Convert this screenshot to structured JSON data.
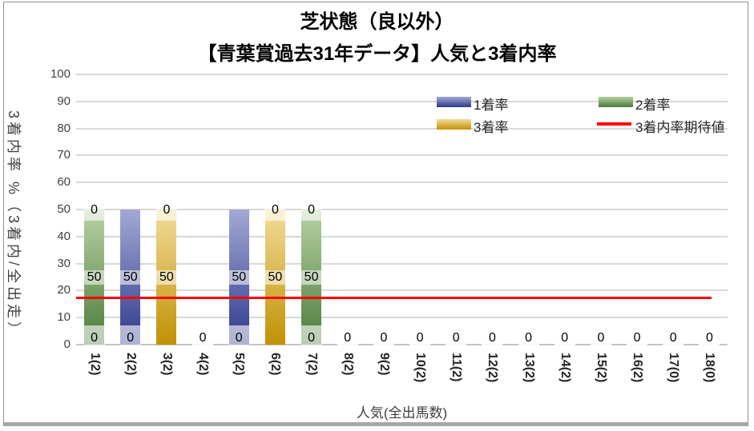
{
  "chart": {
    "title_line1": "芝状態（良以外）",
    "title_line2": "【青葉賞過去31年データ】人気と3着内率",
    "y_axis_title": "3着内率 %（3着内/全出走）",
    "x_axis_title": "人気(全出馬数)",
    "y_ticks": [
      "0",
      "10",
      "20",
      "30",
      "40",
      "50",
      "60",
      "70",
      "80",
      "90",
      "100"
    ],
    "legend": [
      {
        "label": "1着率",
        "type": "bar",
        "light": "#A3A9D4",
        "dark": "#2E3A8C"
      },
      {
        "label": "2着率",
        "type": "bar",
        "light": "#B7D2A5",
        "dark": "#4C7C39"
      },
      {
        "label": "3着率",
        "type": "bar",
        "light": "#F2DC9B",
        "dark": "#C19104"
      },
      {
        "label": "3着内率期待値",
        "type": "line",
        "color": "#FF0000"
      }
    ],
    "colors": {
      "grid": "#D9D9D9",
      "axis": "#C4C4C4",
      "title_text": "#000000",
      "tick_text": "#3F3F3F"
    }
  },
  "chart_data": {
    "type": "bar",
    "stacked": true,
    "title": "芝状態（良以外）【青葉賞過去31年データ】人気と3着内率",
    "xlabel": "人気(全出馬数)",
    "ylabel": "3着内率 %（3着内/全出走）",
    "ylim": [
      0,
      100
    ],
    "grid": true,
    "legend_position": "inside-top-right",
    "data_labels": true,
    "categories": [
      "1(2)",
      "2(2)",
      "3(2)",
      "4(2)",
      "5(2)",
      "6(2)",
      "7(2)",
      "8(2)",
      "9(2)",
      "10(2)",
      "11(2)",
      "12(2)",
      "13(2)",
      "14(2)",
      "15(2)",
      "16(2)",
      "17(0)",
      "18(0)"
    ],
    "stack_order_bottom_to_top": [
      "3着率",
      "2着率",
      "1着率"
    ],
    "series": [
      {
        "name": "1着率",
        "color_light": "#A3A9D4",
        "color_dark": "#2E3A8C",
        "values": [
          0,
          50,
          0,
          0,
          50,
          0,
          0,
          0,
          0,
          0,
          0,
          0,
          0,
          0,
          0,
          0,
          0,
          0
        ]
      },
      {
        "name": "2着率",
        "color_light": "#B7D2A5",
        "color_dark": "#4C7C39",
        "values": [
          50,
          0,
          0,
          0,
          0,
          0,
          50,
          0,
          0,
          0,
          0,
          0,
          0,
          0,
          0,
          0,
          0,
          0
        ]
      },
      {
        "name": "3着率",
        "color_light": "#F2DC9B",
        "color_dark": "#C19104",
        "values": [
          0,
          0,
          50,
          0,
          0,
          50,
          0,
          0,
          0,
          0,
          0,
          0,
          0,
          0,
          0,
          0,
          0,
          0
        ]
      }
    ],
    "line_series": {
      "name": "3着内率期待値",
      "color": "#FF0000",
      "value": 17.6
    }
  }
}
